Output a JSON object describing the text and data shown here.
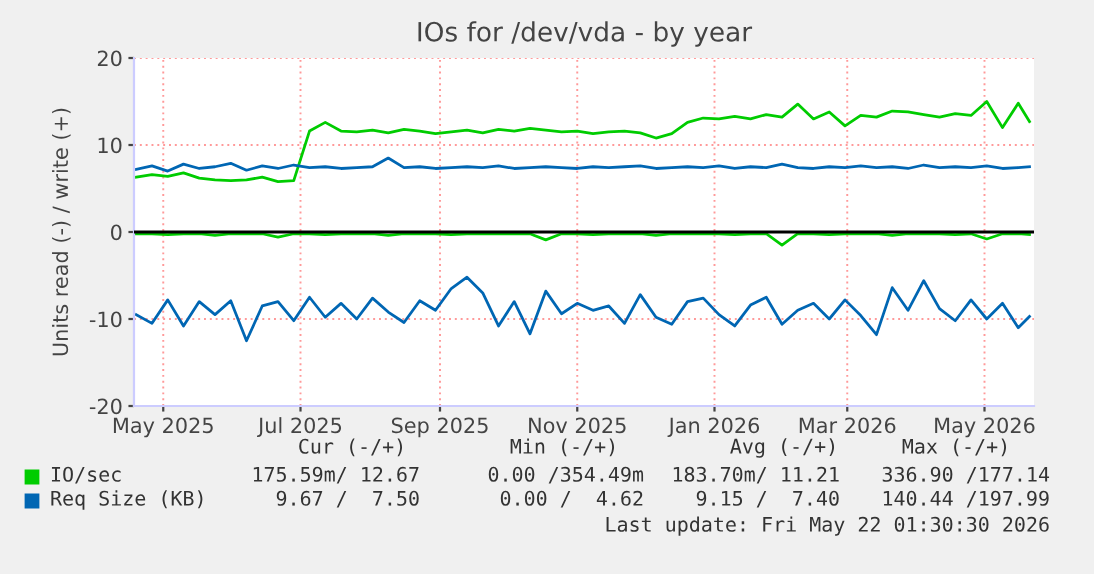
{
  "chart_data": {
    "type": "line",
    "title": "IOs for /dev/vda - by year",
    "ylabel": "Units read (-) / write (+)",
    "x": [
      "2025-04-19",
      "2025-04-26",
      "2025-05-03",
      "2025-05-10",
      "2025-05-17",
      "2025-05-24",
      "2025-05-31",
      "2025-06-07",
      "2025-06-14",
      "2025-06-21",
      "2025-06-28",
      "2025-07-05",
      "2025-07-12",
      "2025-07-19",
      "2025-07-26",
      "2025-08-02",
      "2025-08-09",
      "2025-08-16",
      "2025-08-23",
      "2025-08-30",
      "2025-09-06",
      "2025-09-13",
      "2025-09-20",
      "2025-09-27",
      "2025-10-04",
      "2025-10-11",
      "2025-10-18",
      "2025-10-25",
      "2025-11-01",
      "2025-11-08",
      "2025-11-15",
      "2025-11-22",
      "2025-11-29",
      "2025-12-06",
      "2025-12-13",
      "2025-12-20",
      "2025-12-27",
      "2026-01-03",
      "2026-01-10",
      "2026-01-17",
      "2026-01-24",
      "2026-01-31",
      "2026-02-07",
      "2026-02-14",
      "2026-02-21",
      "2026-02-28",
      "2026-03-07",
      "2026-03-14",
      "2026-03-21",
      "2026-03-28",
      "2026-04-04",
      "2026-04-11",
      "2026-04-18",
      "2026-04-25",
      "2026-05-02",
      "2026-05-09",
      "2026-05-16",
      "2026-05-21"
    ],
    "series": [
      {
        "name": "IO/sec",
        "color": "#00cc00",
        "values": [
          6.3,
          6.6,
          6.4,
          6.8,
          6.2,
          6.0,
          5.9,
          6.0,
          6.3,
          5.8,
          5.9,
          11.6,
          12.6,
          11.6,
          11.5,
          11.7,
          11.4,
          11.8,
          11.6,
          11.3,
          11.5,
          11.7,
          11.4,
          11.8,
          11.6,
          11.9,
          11.7,
          11.5,
          11.6,
          11.3,
          11.5,
          11.6,
          11.4,
          10.8,
          11.3,
          12.6,
          13.1,
          13.0,
          13.3,
          13.0,
          13.5,
          13.2,
          14.7,
          13.0,
          13.8,
          12.2,
          13.4,
          13.2,
          13.9,
          13.8,
          13.5,
          13.2,
          13.6,
          13.4,
          15.0,
          12.0,
          14.8,
          12.7
        ]
      },
      {
        "color": "#00cc00",
        "values": [
          -0.2,
          -0.2,
          -0.3,
          -0.2,
          -0.2,
          -0.4,
          -0.2,
          -0.2,
          -0.2,
          -0.6,
          -0.2,
          -0.2,
          -0.3,
          -0.2,
          -0.2,
          -0.2,
          -0.4,
          -0.2,
          -0.2,
          -0.2,
          -0.3,
          -0.2,
          -0.2,
          -0.2,
          -0.2,
          -0.2,
          -0.9,
          -0.2,
          -0.2,
          -0.3,
          -0.2,
          -0.2,
          -0.2,
          -0.4,
          -0.2,
          -0.2,
          -0.2,
          -0.2,
          -0.3,
          -0.2,
          -0.2,
          -1.5,
          -0.2,
          -0.2,
          -0.3,
          -0.2,
          -0.2,
          -0.2,
          -0.4,
          -0.2,
          -0.2,
          -0.2,
          -0.3,
          -0.2,
          -0.8,
          -0.2,
          -0.2,
          -0.3
        ]
      },
      {
        "name": "Req Size (KB)",
        "color": "#0066b3",
        "values": [
          7.2,
          7.6,
          7.0,
          7.8,
          7.3,
          7.5,
          7.9,
          7.1,
          7.6,
          7.3,
          7.7,
          7.4,
          7.5,
          7.3,
          7.4,
          7.5,
          8.5,
          7.4,
          7.5,
          7.3,
          7.4,
          7.5,
          7.4,
          7.6,
          7.3,
          7.4,
          7.5,
          7.4,
          7.3,
          7.5,
          7.4,
          7.5,
          7.6,
          7.3,
          7.4,
          7.5,
          7.4,
          7.6,
          7.3,
          7.5,
          7.4,
          7.8,
          7.4,
          7.3,
          7.5,
          7.4,
          7.6,
          7.4,
          7.5,
          7.3,
          7.7,
          7.4,
          7.5,
          7.4,
          7.6,
          7.3,
          7.4,
          7.5
        ]
      },
      {
        "color": "#0066b3",
        "values": [
          -9.5,
          -10.5,
          -7.8,
          -10.8,
          -8.0,
          -9.5,
          -7.9,
          -12.5,
          -8.5,
          -8.0,
          -10.2,
          -7.5,
          -9.8,
          -8.2,
          -10.0,
          -7.6,
          -9.2,
          -10.4,
          -7.9,
          -9.0,
          -6.5,
          -5.2,
          -7.0,
          -10.8,
          -8.0,
          -11.7,
          -6.8,
          -9.4,
          -8.2,
          -9.0,
          -8.5,
          -10.5,
          -7.2,
          -9.8,
          -10.6,
          -8.0,
          -7.6,
          -9.5,
          -10.8,
          -8.4,
          -7.5,
          -10.6,
          -9.0,
          -8.2,
          -10.0,
          -7.8,
          -9.6,
          -11.8,
          -6.4,
          -9.0,
          -5.6,
          -8.8,
          -10.2,
          -7.8,
          -10.0,
          -8.2,
          -11.0,
          -9.7
        ]
      }
    ],
    "xlim": [
      "2025-04-18",
      "2026-05-23"
    ],
    "xticks": [
      {
        "value": "2025-05-01",
        "label": "May 2025"
      },
      {
        "value": "2025-07-01",
        "label": "Jul 2025"
      },
      {
        "value": "2025-09-01",
        "label": "Sep 2025"
      },
      {
        "value": "2025-11-01",
        "label": "Nov 2025"
      },
      {
        "value": "2026-01-01",
        "label": "Jan 2026"
      },
      {
        "value": "2026-03-01",
        "label": "Mar 2026"
      },
      {
        "value": "2026-05-01",
        "label": "May 2026"
      }
    ],
    "ylim": [
      -20,
      20
    ],
    "yticks": [
      -20,
      -10,
      0,
      10,
      20
    ],
    "ref_lines": [
      {
        "axis": "y",
        "value": 0,
        "color": "#000000"
      }
    ],
    "grid": true,
    "legend": "bottom left",
    "annotations": [
      "Cur (-/+)",
      "Min (-/+)",
      "Avg (-/+)",
      "Max (-/+)",
      "175.59m/ 12.67",
      "0.00 /354.49m",
      "183.70m/ 11.21",
      "336.90 /177.14",
      "9.67 /  7.50",
      "0.00 /  4.62",
      "9.15 /  7.40",
      "140.44 /197.99",
      "Last update: Fri May 22 01:30:30 2026"
    ]
  }
}
